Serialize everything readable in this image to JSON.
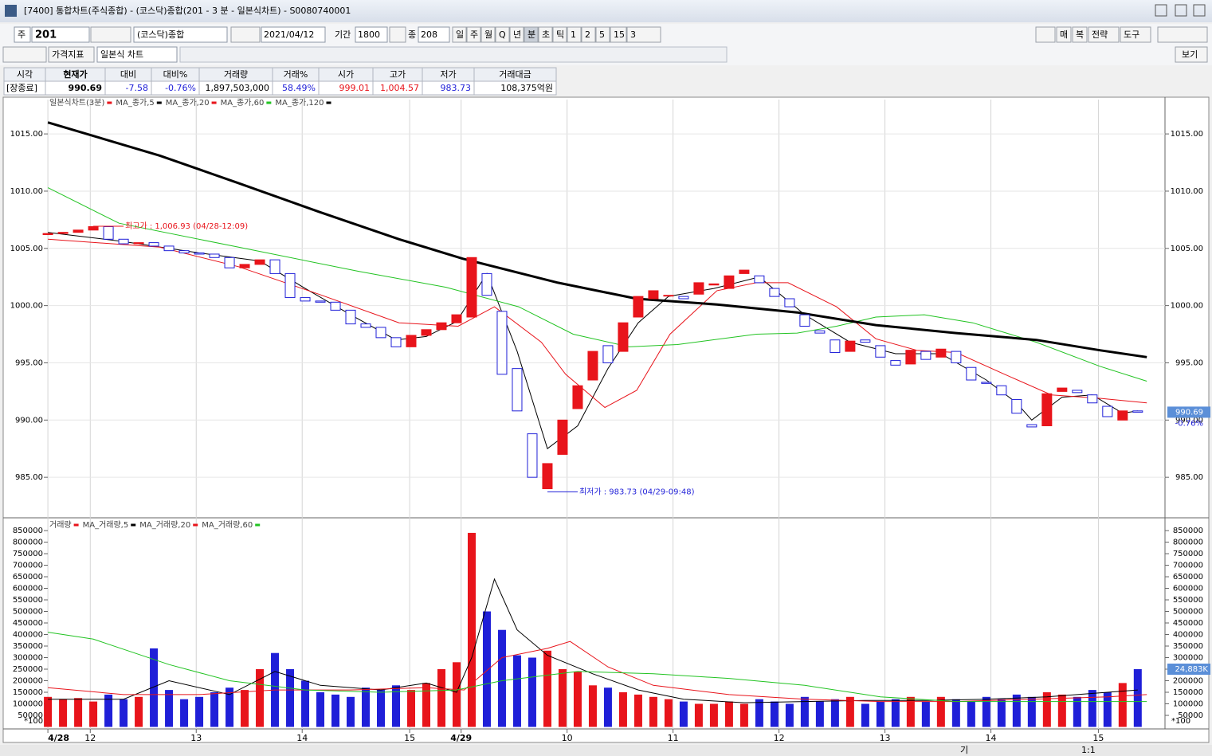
{
  "window": {
    "title": "[7400] 통합차트(주식종합) - (코스닥)종합(201 - 3 분 - 일본식차트) - S0080740001"
  },
  "toolbar": {
    "market": "주",
    "code": "201",
    "name": "(코스닥)종합",
    "date": "2021/04/12",
    "period_label": "기간",
    "period": "1800",
    "count_label": "종",
    "count": "208",
    "intervals": [
      "일",
      "주",
      "월",
      "Q",
      "년",
      "분",
      "초",
      "틱",
      "1",
      "2",
      "5",
      "15",
      "3"
    ],
    "right_buttons": [
      "매",
      "복",
      "전략",
      "도구"
    ]
  },
  "toolbar2": {
    "indicator": "가격지표",
    "chart_kind": "일본식 차트",
    "view": "보기"
  },
  "quote": {
    "headers": [
      "시각",
      "현재가",
      "대비",
      "대비%",
      "거래량",
      "거래%",
      "시가",
      "고가",
      "저가",
      "거래대금"
    ],
    "values": [
      "[장종료]",
      "990.69",
      "-7.58",
      "-0.76%",
      "1,897,503,000",
      "58.49%",
      "999.01",
      "1,004.57",
      "983.73",
      "108,375억원"
    ],
    "value_colors": [
      "#000000",
      "#000000",
      "#1f1fd8",
      "#1f1fd8",
      "#000000",
      "#1f1fd8",
      "#e8141b",
      "#e8141b",
      "#1f1fd8",
      "#000000"
    ]
  },
  "statusbar": {
    "items": [
      "기",
      "1:1"
    ]
  },
  "chart_data": [
    {
      "type": "candlestick",
      "series": [
        {
          "name": "일본식차트(3분)",
          "up_color": "#e8141b",
          "down_color": "#1f1fd8",
          "open": [
            1006.2,
            1006.3,
            1006.4,
            1006.6,
            1006.9,
            1005.8,
            1005.4,
            1005.5,
            1005.2,
            1004.8,
            1004.6,
            1004.5,
            1004.2,
            1003.3,
            1003.6,
            1004.0,
            1002.8,
            1000.7,
            1000.4,
            1000.3,
            999.6,
            998.4,
            998.1,
            997.2,
            996.4,
            997.4,
            997.9,
            998.5,
            999.0,
            1002.8,
            999.5,
            994.5,
            988.8,
            984.0,
            987.0,
            991.0,
            993.5,
            996.5,
            996.0,
            999.0,
            1000.6,
            1000.9,
            1000.8,
            1001.0,
            1001.8,
            1001.5,
            1002.8,
            1002.6,
            1001.5,
            1000.6,
            999.2,
            997.8,
            997.0,
            996.0,
            997.0,
            996.5,
            995.2,
            994.9,
            996.0,
            995.5,
            996.0,
            994.6,
            993.3,
            993.0,
            991.8,
            989.6,
            989.5,
            992.5,
            992.6,
            992.2,
            991.2,
            990.0,
            990.8
          ],
          "close": [
            1006.3,
            1006.4,
            1006.6,
            1006.9,
            1005.8,
            1005.4,
            1005.5,
            1005.2,
            1004.8,
            1004.6,
            1004.5,
            1004.2,
            1003.3,
            1003.6,
            1004.0,
            1002.8,
            1000.7,
            1000.4,
            1000.3,
            999.6,
            998.4,
            998.1,
            997.2,
            996.4,
            997.4,
            997.9,
            998.5,
            999.2,
            1004.2,
            1000.9,
            994.0,
            990.8,
            985.0,
            986.2,
            990.0,
            993.0,
            996.0,
            995.0,
            998.5,
            1000.8,
            1001.3,
            1000.9,
            1000.6,
            1002.0,
            1001.9,
            1002.6,
            1003.1,
            1002.0,
            1000.8,
            999.9,
            998.2,
            997.6,
            995.9,
            996.9,
            996.8,
            995.5,
            994.8,
            996.1,
            995.3,
            996.2,
            995.0,
            993.5,
            993.2,
            992.2,
            990.6,
            989.4,
            992.3,
            992.8,
            992.4,
            991.5,
            990.3,
            990.8,
            990.69
          ]
        }
      ],
      "lines": [
        {
          "name": "MA_종가,5",
          "color": "#000000",
          "width": 1,
          "x": [
            0,
            5,
            10,
            14,
            17,
            20,
            23,
            25,
            27,
            29,
            31,
            33,
            35,
            37,
            39,
            41,
            44,
            47,
            50,
            53,
            56,
            59,
            62,
            64,
            65,
            67,
            69,
            71,
            72
          ],
          "values": [
            1006.4,
            1005.6,
            1004.6,
            1003.9,
            1001.5,
            999.2,
            997.0,
            997.3,
            998.6,
            1002.8,
            996,
            987.5,
            989.5,
            994.5,
            998.5,
            1000.8,
            1001.5,
            1002.5,
            999.2,
            996.8,
            995.8,
            995.8,
            993.5,
            991.5,
            990.0,
            992.0,
            992.2,
            990.6,
            990.8
          ]
        },
        {
          "name": "MA_종가,20",
          "color": "#e8141b",
          "width": 1,
          "x": [
            0,
            7.4,
            12.6,
            17.9,
            23.2,
            27.1,
            29.5,
            32.6,
            34.2,
            36.8,
            38.9,
            41.1,
            44.2,
            46.8,
            48.9,
            52.1,
            54.7,
            57.4,
            60,
            63.2,
            66.3,
            69.5,
            72.6
          ],
          "values": [
            1005.8,
            1005.1,
            1003.4,
            1001.0,
            998.5,
            998.2,
            999.9,
            996.8,
            994.0,
            991.1,
            992.6,
            997.5,
            1001.3,
            1002.0,
            1002.0,
            999.9,
            997.1,
            996.1,
            995.9,
            994.0,
            992.2,
            991.9,
            991.5
          ]
        },
        {
          "name": "MA_종가,60",
          "color": "#22c322",
          "width": 1,
          "x": [
            0,
            4.7,
            12.6,
            20.5,
            26.3,
            31.1,
            34.7,
            38.4,
            41.6,
            46.8,
            49.5,
            52.1,
            54.7,
            57.9,
            61.1,
            65.3,
            69.5,
            72.6
          ],
          "values": [
            1010.3,
            1007.2,
            1005.1,
            1003.0,
            1001.6,
            999.9,
            997.5,
            996.4,
            996.6,
            997.5,
            997.6,
            998.2,
            999.0,
            999.2,
            998.5,
            996.8,
            994.7,
            993.4
          ]
        },
        {
          "name": "MA_종가,120",
          "color": "#000000",
          "width": 3,
          "x": [
            0,
            7.4,
            12.6,
            17.9,
            23.2,
            27.4,
            33.7,
            38.9,
            44.2,
            49.5,
            54.7,
            60,
            65.3,
            69.5,
            72.6
          ],
          "values": [
            1016.0,
            1013.1,
            1010.7,
            1008.2,
            1005.8,
            1004.1,
            1002.0,
            1000.6,
            1000.1,
            999.4,
            998.3,
            997.6,
            997.0,
            996.1,
            995.5
          ]
        }
      ],
      "annotations": [
        {
          "text": "최고가 : 1,006.93 (04/28-12:09)",
          "x": 3,
          "y": 1006.93,
          "color": "#e8141b"
        },
        {
          "text": "최저가 : 983.73 (04/29-09:48)",
          "x": 33,
          "y": 983.73,
          "color": "#1f1fd8"
        }
      ],
      "last_value": {
        "value": 990.69,
        "label": "990.69"
      },
      "last_change": "-0.76%",
      "xlim": [
        -2.9,
        73.8
      ],
      "ylim": [
        981.6,
        1018.0
      ],
      "yticks": [
        {
          "value": 985,
          "label": "985.00"
        },
        {
          "value": 990,
          "label": "990.00"
        },
        {
          "value": 995,
          "label": "995.00"
        },
        {
          "value": 1000,
          "label": "1000.00"
        },
        {
          "value": 1005,
          "label": "1005.00"
        },
        {
          "value": 1010,
          "label": "1010.00"
        },
        {
          "value": 1015,
          "label": "1015.00"
        }
      ],
      "grid": true
    },
    {
      "type": "bar",
      "title": "거래량",
      "up_color": "#e8141b",
      "down_color": "#1f1fd8",
      "values": [
        130000,
        120000,
        125000,
        110000,
        140000,
        120000,
        130000,
        340000,
        160000,
        120000,
        130000,
        150000,
        170000,
        160000,
        250000,
        320000,
        250000,
        200000,
        150000,
        140000,
        130000,
        170000,
        160000,
        180000,
        160000,
        190000,
        250000,
        280000,
        840000,
        500000,
        420000,
        310000,
        300000,
        330000,
        250000,
        240000,
        180000,
        170000,
        150000,
        140000,
        130000,
        120000,
        110000,
        100000,
        100000,
        110000,
        100000,
        120000,
        110000,
        100000,
        130000,
        110000,
        120000,
        130000,
        100000,
        110000,
        120000,
        130000,
        110000,
        130000,
        120000,
        110000,
        130000,
        120000,
        140000,
        130000,
        150000,
        140000,
        130000,
        160000,
        150000,
        190000,
        250000
      ],
      "lines": [
        {
          "name": "MA_거래량,5",
          "color": "#000000",
          "x": [
            0,
            5,
            8,
            12,
            15,
            18,
            22,
            25,
            27,
            28,
            29.5,
            31,
            33,
            36,
            39,
            42,
            46,
            50,
            54,
            58,
            62,
            66,
            70,
            72
          ],
          "values": [
            120000,
            120000,
            200000,
            140000,
            240000,
            180000,
            160000,
            190000,
            150000,
            300000,
            640000,
            420000,
            310000,
            230000,
            160000,
            120000,
            105000,
            110000,
            115000,
            115000,
            120000,
            130000,
            150000,
            160000
          ]
        },
        {
          "name": "MA_거래량,20",
          "color": "#e8141b",
          "x": [
            0,
            5,
            10,
            15,
            20,
            25,
            27.5,
            30,
            33,
            34.5,
            37,
            40,
            45,
            50,
            55,
            60,
            65,
            70,
            72.6
          ],
          "values": [
            170000,
            140000,
            140000,
            160000,
            160000,
            170000,
            160000,
            300000,
            340000,
            370000,
            260000,
            180000,
            140000,
            120000,
            110000,
            110000,
            120000,
            130000,
            140000
          ]
        },
        {
          "name": "MA_거래량,60",
          "color": "#22c322",
          "x": [
            0,
            3,
            8,
            12,
            17,
            22,
            27,
            30,
            35,
            40,
            45,
            50,
            55,
            60,
            65,
            70,
            72.6
          ],
          "values": [
            410000,
            380000,
            270000,
            200000,
            160000,
            150000,
            160000,
            200000,
            240000,
            230000,
            210000,
            180000,
            130000,
            110000,
            110000,
            110000,
            110000
          ]
        }
      ],
      "unit_label": "*100",
      "last_label": "24,883K",
      "xlim": [
        -2.9,
        73.8
      ],
      "ylim": [
        0,
        888000
      ],
      "yticks": [
        50000,
        100000,
        150000,
        200000,
        250000,
        300000,
        350000,
        400000,
        450000,
        500000,
        550000,
        600000,
        650000,
        700000,
        750000,
        800000,
        850000
      ],
      "xticks": [
        {
          "value": 0,
          "label": "4/28"
        },
        {
          "value": 2.8,
          "label": "12"
        },
        {
          "value": 9.8,
          "label": "13"
        },
        {
          "value": 16.8,
          "label": "14"
        },
        {
          "value": 23.9,
          "label": "15"
        },
        {
          "value": 27.3,
          "label": "4/29"
        },
        {
          "value": 34.3,
          "label": "10"
        },
        {
          "value": 41.3,
          "label": "11"
        },
        {
          "value": 48.3,
          "label": "12"
        },
        {
          "value": 55.3,
          "label": "13"
        },
        {
          "value": 62.3,
          "label": "14"
        },
        {
          "value": 69.4,
          "label": "15"
        }
      ],
      "grid": true
    }
  ]
}
